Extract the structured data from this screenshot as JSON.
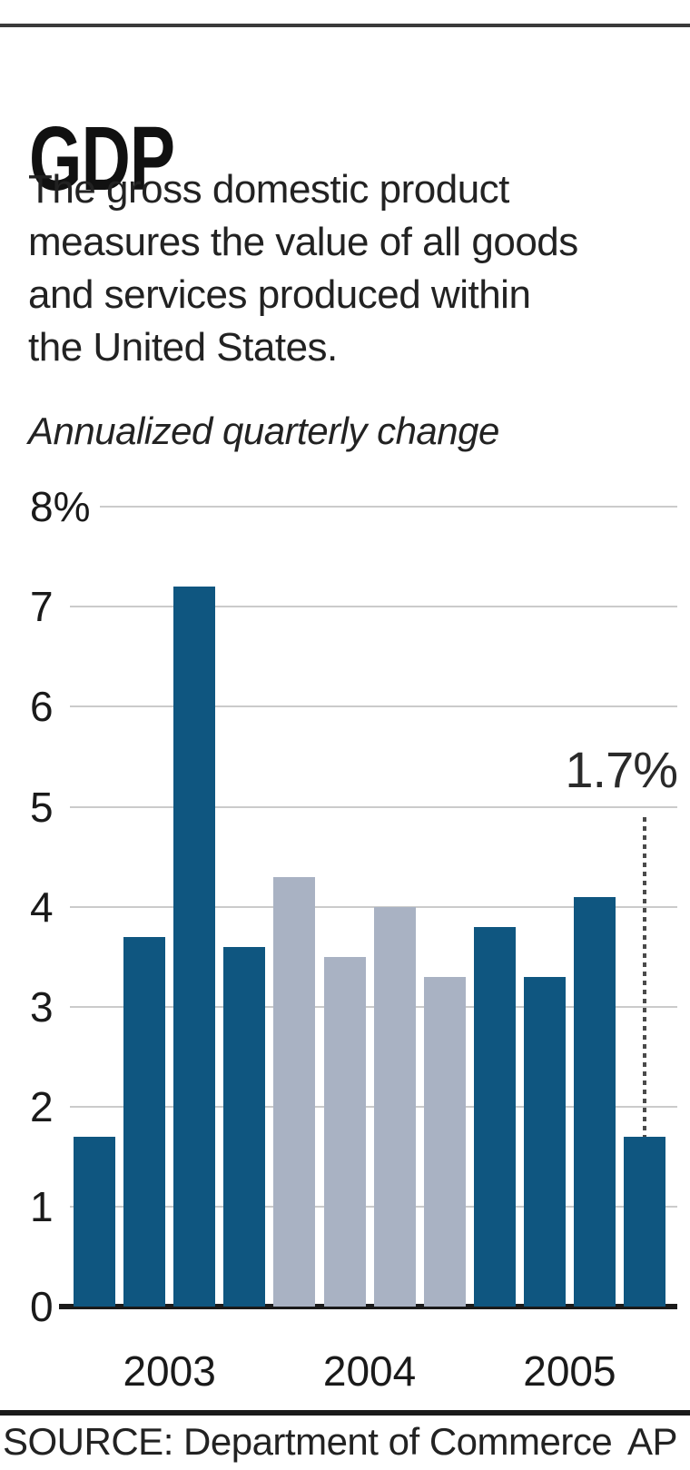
{
  "header": {
    "title": "GDP",
    "description_lines": [
      "The gross domestic product",
      "measures the value of all goods",
      "and services produced within",
      "the United States."
    ],
    "subtitle": "Annualized quarterly change"
  },
  "chart_data": {
    "type": "bar",
    "title": "GDP",
    "subtitle": "Annualized quarterly change",
    "unit": "percent annualized quarterly change",
    "ylim": [
      0,
      8
    ],
    "grid": true,
    "legend_position": "none",
    "yticks": [
      {
        "value": 8,
        "label": "8%"
      },
      {
        "value": 7,
        "label": "7"
      },
      {
        "value": 6,
        "label": "6"
      },
      {
        "value": 5,
        "label": "5"
      },
      {
        "value": 4,
        "label": "4"
      },
      {
        "value": 3,
        "label": "3"
      },
      {
        "value": 2,
        "label": "2"
      },
      {
        "value": 1,
        "label": "1"
      },
      {
        "value": 0,
        "label": "0"
      }
    ],
    "categories": [
      "2003 Q1",
      "2003 Q2",
      "2003 Q3",
      "2003 Q4",
      "2004 Q1",
      "2004 Q2",
      "2004 Q3",
      "2004 Q4",
      "2005 Q1",
      "2005 Q2",
      "2005 Q3",
      "2005 Q4"
    ],
    "groups": [
      {
        "label": "2003",
        "color": "#0f5680",
        "values": [
          1.7,
          3.7,
          7.2,
          3.6
        ]
      },
      {
        "label": "2004",
        "color": "#a9b2c3",
        "values": [
          4.3,
          3.5,
          4.0,
          3.3
        ]
      },
      {
        "label": "2005",
        "color": "#0f5680",
        "values": [
          3.8,
          3.3,
          4.1,
          1.7
        ]
      }
    ],
    "annotation": {
      "label": "1.7%",
      "bar_index": 11
    }
  },
  "footer": {
    "source": "SOURCE: Department of Commerce",
    "credit": "AP"
  },
  "colors": {
    "bar_blue": "#0f5680",
    "bar_gray": "#a9b2c3",
    "gridline": "#cbcbcb",
    "axis": "#1a1a1a",
    "dotted_line": "#4a4a4a",
    "text": "#1a1a1a"
  }
}
